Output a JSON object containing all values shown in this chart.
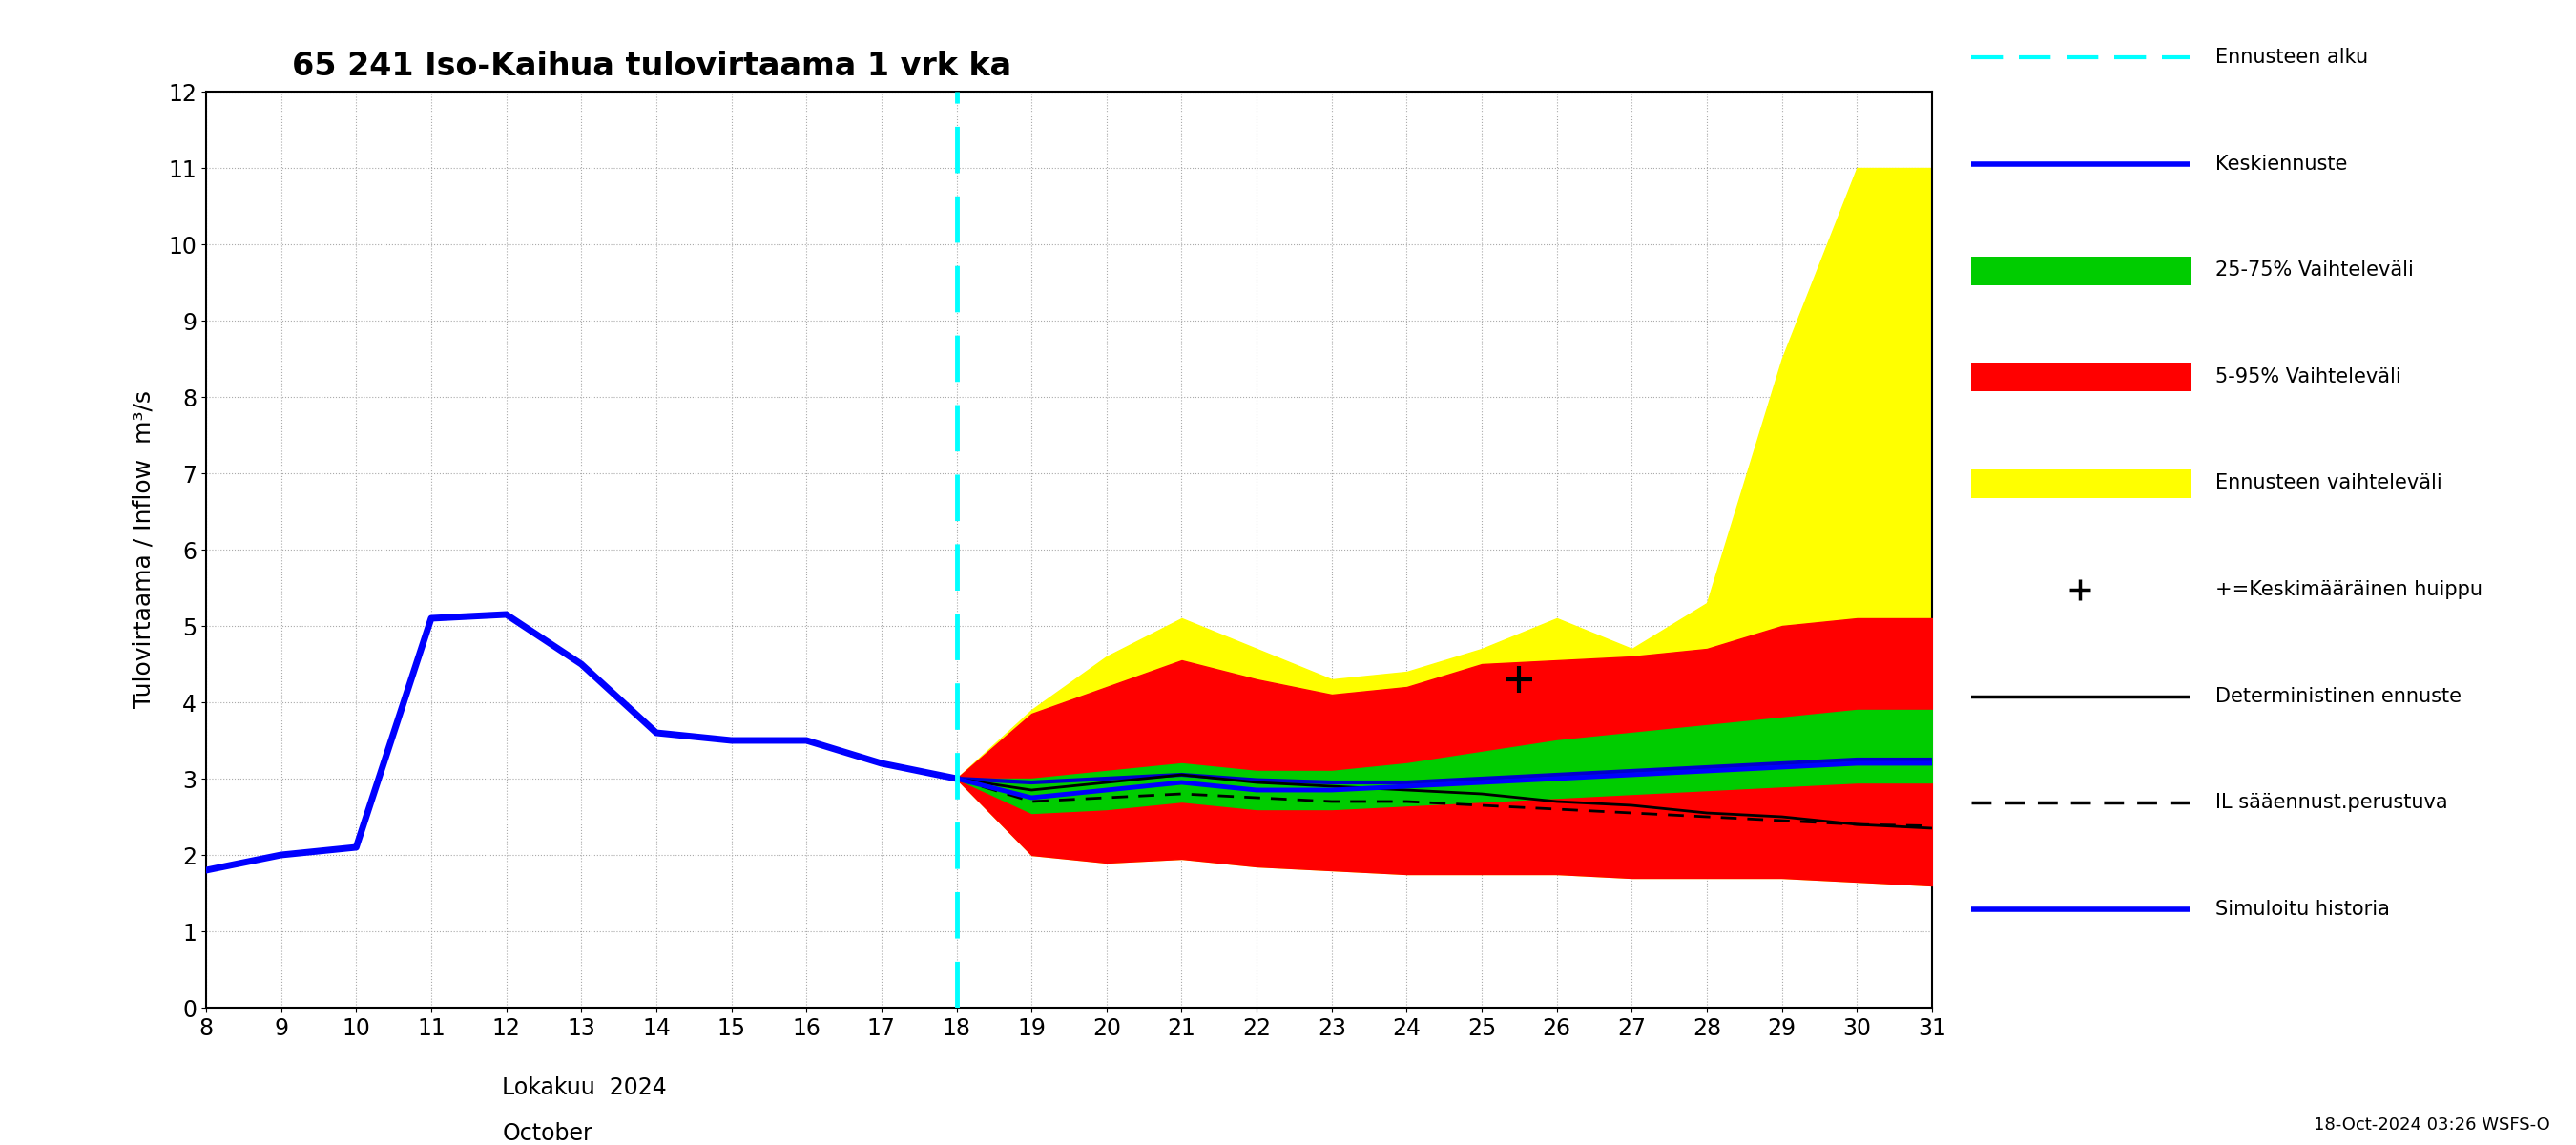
{
  "title": "65 241 Iso-Kaihua tulovirtaama 1 vrk ka",
  "ylabel": "Tulovirtaama / Inflow  m³/s",
  "xlabel_primary": "Lokakuu  2024",
  "xlabel_secondary": "October",
  "footnote": "18-Oct-2024 03:26 WSFS-O",
  "ylim": [
    0,
    12
  ],
  "yticks": [
    0,
    1,
    2,
    3,
    4,
    5,
    6,
    7,
    8,
    9,
    10,
    11,
    12
  ],
  "xticks": [
    8,
    9,
    10,
    11,
    12,
    13,
    14,
    15,
    16,
    17,
    18,
    19,
    20,
    21,
    22,
    23,
    24,
    25,
    26,
    27,
    28,
    29,
    30,
    31
  ],
  "forecast_start_x": 18,
  "history_x": [
    8,
    9,
    10,
    11,
    12,
    13,
    14,
    15,
    16,
    17,
    18
  ],
  "history_y": [
    1.8,
    2.0,
    2.1,
    5.1,
    5.15,
    4.5,
    3.6,
    3.5,
    3.5,
    3.2,
    3.0
  ],
  "forecast_x": [
    18,
    19,
    20,
    21,
    22,
    23,
    24,
    25,
    26,
    27,
    28,
    29,
    30,
    31
  ],
  "median_y": [
    3.0,
    2.75,
    2.85,
    2.95,
    2.85,
    2.85,
    2.9,
    2.95,
    3.0,
    3.05,
    3.1,
    3.15,
    3.2,
    3.2
  ],
  "p25_y": [
    3.0,
    2.55,
    2.6,
    2.7,
    2.6,
    2.6,
    2.65,
    2.7,
    2.75,
    2.8,
    2.85,
    2.9,
    2.95,
    2.95
  ],
  "p75_y": [
    3.0,
    3.0,
    3.1,
    3.2,
    3.1,
    3.1,
    3.2,
    3.35,
    3.5,
    3.6,
    3.7,
    3.8,
    3.9,
    3.9
  ],
  "p05_y": [
    3.0,
    2.0,
    1.9,
    1.95,
    1.85,
    1.8,
    1.75,
    1.75,
    1.75,
    1.7,
    1.7,
    1.7,
    1.65,
    1.6
  ],
  "p95_y": [
    3.0,
    3.85,
    4.2,
    4.55,
    4.3,
    4.1,
    4.2,
    4.5,
    4.55,
    4.6,
    4.7,
    5.0,
    5.1,
    5.1
  ],
  "yellow_low_y": [
    3.0,
    2.0,
    1.9,
    1.95,
    1.85,
    1.8,
    1.75,
    1.75,
    1.75,
    1.7,
    1.7,
    1.7,
    1.65,
    1.6
  ],
  "yellow_high_y": [
    3.0,
    3.9,
    4.6,
    5.1,
    4.7,
    4.3,
    4.4,
    4.7,
    5.1,
    4.7,
    5.3,
    8.5,
    11.0,
    11.0
  ],
  "deterministic_y": [
    3.0,
    2.85,
    2.95,
    3.05,
    2.95,
    2.9,
    2.85,
    2.8,
    2.7,
    2.65,
    2.55,
    2.5,
    2.4,
    2.35
  ],
  "il_saannust_y": [
    3.0,
    2.7,
    2.75,
    2.8,
    2.75,
    2.7,
    2.7,
    2.65,
    2.6,
    2.55,
    2.5,
    2.45,
    2.4,
    2.38
  ],
  "simuloitu_y": [
    3.0,
    2.95,
    3.0,
    3.05,
    2.98,
    2.95,
    2.95,
    3.0,
    3.05,
    3.1,
    3.15,
    3.2,
    3.25,
    3.25
  ],
  "peak_marker_x": 25.5,
  "peak_marker_y": 4.3,
  "colors": {
    "history": "#0000ff",
    "median": "#0000ff",
    "p25_75": "#00cc00",
    "p05_95": "#ff0000",
    "yellow": "#ffff00",
    "deterministic": "#000000",
    "il_saannust": "#000000",
    "simuloitu": "#0000cc",
    "forecast_line": "#00ffff",
    "background": "#ffffff",
    "grid": "#aaaaaa"
  }
}
